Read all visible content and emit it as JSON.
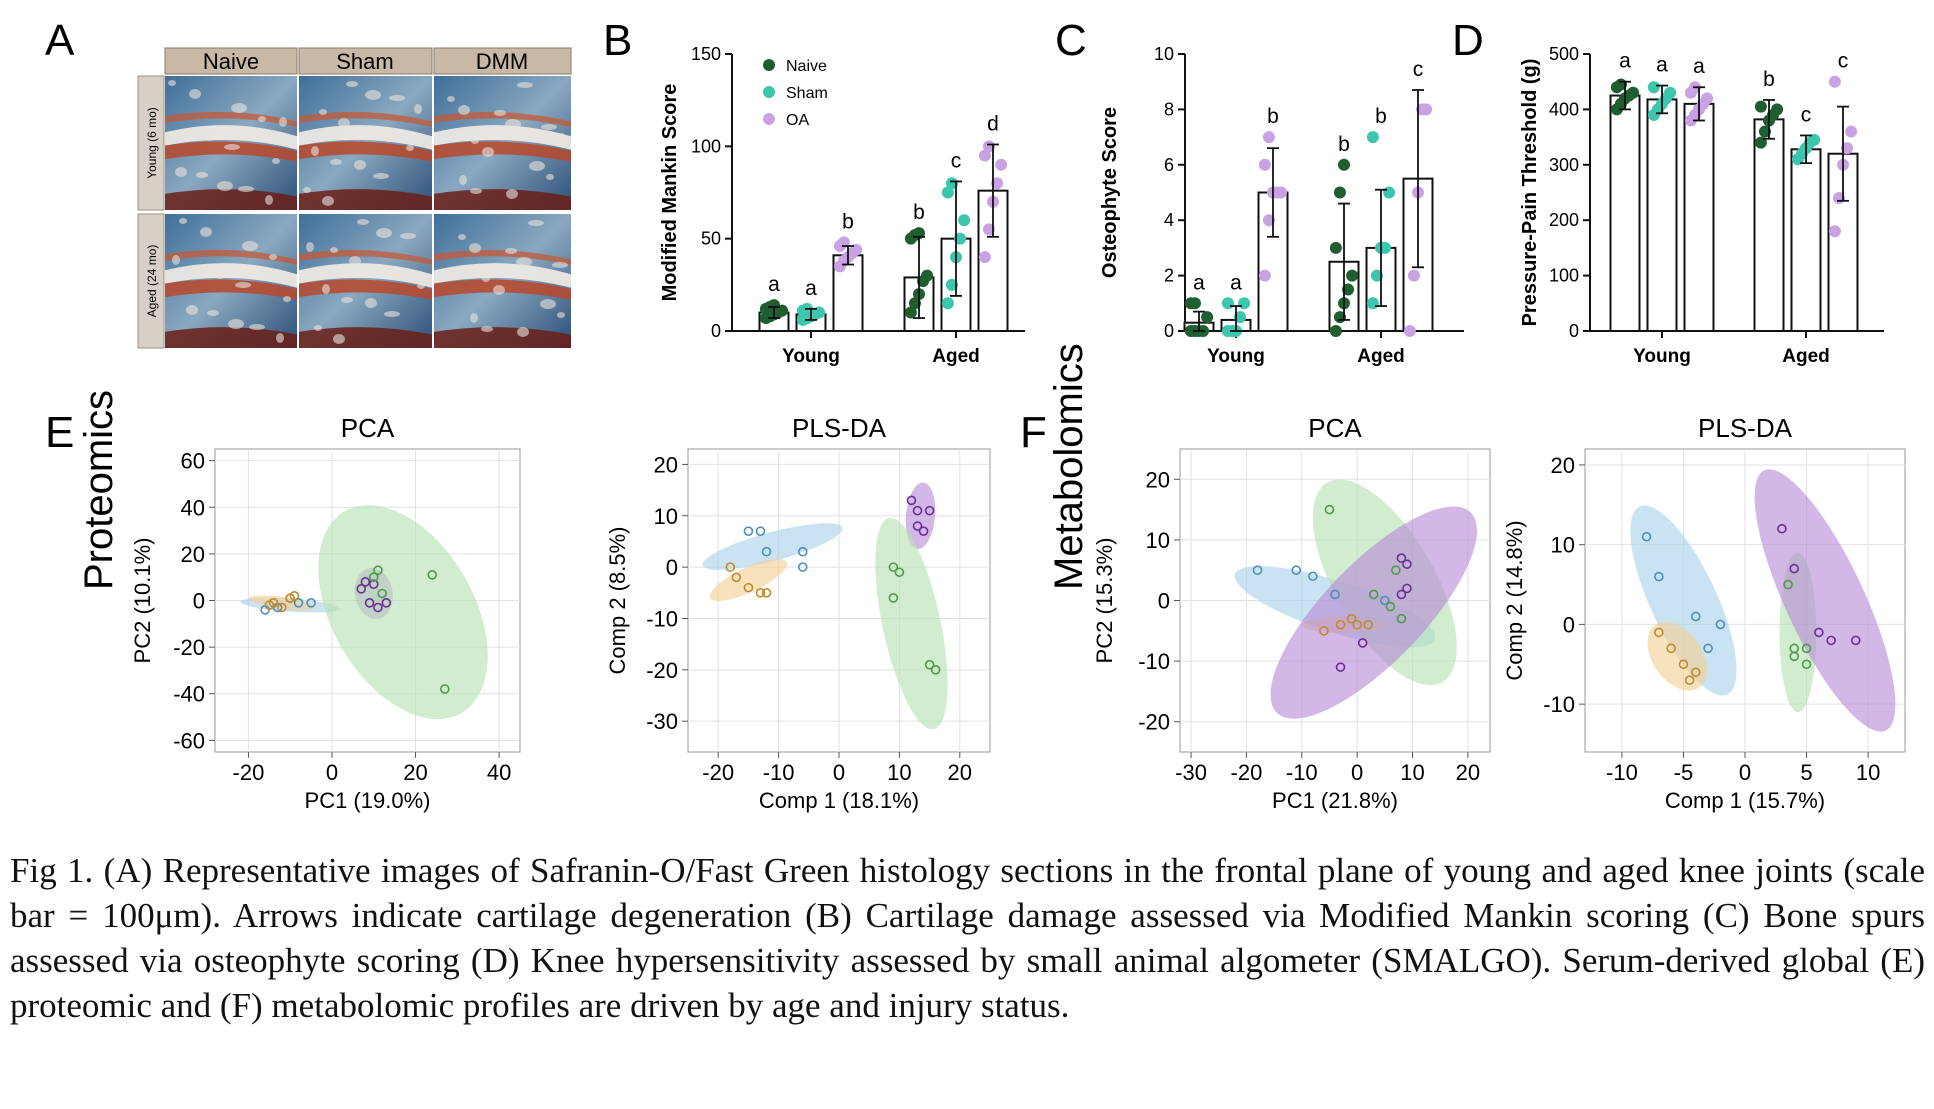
{
  "panel_letters": {
    "A": "A",
    "B": "B",
    "C": "C",
    "D": "D",
    "E": "E",
    "F": "F"
  },
  "histology": {
    "columns": [
      "Naive",
      "Sham",
      "DMM"
    ],
    "rows": [
      "Young (6 mo)",
      "Aged (24 mo)"
    ]
  },
  "omics_row_labels": {
    "proteomics": "Proteomics",
    "metabolomics": "Metabolomics"
  },
  "colors": {
    "naive": "#1e5e30",
    "sham": "#3cc6ad",
    "oa": "#c9a2e3",
    "blue_group": "#a9d2ea",
    "orange_group": "#f4cf95",
    "green_group": "#b5e0b2",
    "purple_group": "#b88ad6"
  },
  "chart_data": [
    {
      "id": "B",
      "type": "bar",
      "ylabel": "Modified Mankin Score",
      "ylim": [
        0,
        150
      ],
      "yticks": [
        0,
        50,
        100,
        150
      ],
      "categories": [
        "Young",
        "Aged"
      ],
      "legend": {
        "placement": "top-left",
        "entries": [
          "Naive",
          "Sham",
          "OA"
        ]
      },
      "series": [
        {
          "name": "Naive",
          "values": [
            10,
            29
          ],
          "err": [
            3,
            22
          ],
          "letters": [
            "a",
            "b"
          ],
          "points": [
            [
              7,
              8,
              9,
              10,
              11,
              12,
              13,
              14
            ],
            [
              10,
              15,
              20,
              27,
              30,
              50,
              52,
              53
            ]
          ]
        },
        {
          "name": "Sham",
          "values": [
            9,
            50
          ],
          "err": [
            3,
            31
          ],
          "letters": [
            "a",
            "c"
          ],
          "points": [
            [
              6,
              7,
              8,
              9,
              10,
              11,
              12
            ],
            [
              15,
              25,
              40,
              50,
              60,
              75,
              80
            ]
          ]
        },
        {
          "name": "OA",
          "values": [
            41,
            76
          ],
          "err": [
            5,
            25
          ],
          "letters": [
            "b",
            "d"
          ],
          "points": [
            [
              35,
              38,
              40,
              42,
              44,
              46,
              48
            ],
            [
              40,
              55,
              70,
              80,
              90,
              95,
              100
            ]
          ]
        }
      ]
    },
    {
      "id": "C",
      "type": "bar",
      "ylabel": "Osteophyte Score",
      "ylim": [
        0,
        10
      ],
      "yticks": [
        0,
        2,
        4,
        6,
        8,
        10
      ],
      "categories": [
        "Young",
        "Aged"
      ],
      "series": [
        {
          "name": "Naive",
          "values": [
            0.3,
            2.5
          ],
          "err": [
            0.4,
            2.1
          ],
          "letters": [
            "a",
            "b"
          ],
          "points": [
            [
              0,
              0,
              0,
              0,
              0.5,
              1,
              1
            ],
            [
              0,
              0.5,
              1,
              1.5,
              2,
              3,
              5,
              6
            ]
          ]
        },
        {
          "name": "Sham",
          "values": [
            0.4,
            3.0
          ],
          "err": [
            0.5,
            2.1
          ],
          "letters": [
            "a",
            "b"
          ],
          "points": [
            [
              0,
              0,
              0,
              0.5,
              1,
              1
            ],
            [
              1,
              2,
              3,
              3,
              5,
              7
            ]
          ]
        },
        {
          "name": "OA",
          "values": [
            5.0,
            5.5
          ],
          "err": [
            1.6,
            3.2
          ],
          "letters": [
            "b",
            "c"
          ],
          "points": [
            [
              2,
              4,
              5,
              5,
              5,
              6,
              7
            ],
            [
              0,
              2,
              5,
              8,
              8
            ]
          ]
        }
      ]
    },
    {
      "id": "D",
      "type": "bar",
      "ylabel": "Pressure-Pain Threshold (g)",
      "ylim": [
        0,
        500
      ],
      "yticks": [
        0,
        100,
        200,
        300,
        400,
        500
      ],
      "categories": [
        "Young",
        "Aged"
      ],
      "series": [
        {
          "name": "Naive",
          "values": [
            425,
            382
          ],
          "err": [
            25,
            35
          ],
          "letters": [
            "a",
            "b"
          ],
          "points": [
            [
              400,
              410,
              420,
              425,
              430,
              440,
              445
            ],
            [
              340,
              360,
              380,
              390,
              400,
              405
            ]
          ]
        },
        {
          "name": "Sham",
          "values": [
            418,
            328
          ],
          "err": [
            25,
            25
          ],
          "letters": [
            "a",
            "c"
          ],
          "points": [
            [
              390,
              400,
              410,
              420,
              430,
              440
            ],
            [
              310,
              320,
              330,
              340,
              345
            ]
          ]
        },
        {
          "name": "OA",
          "values": [
            410,
            320
          ],
          "err": [
            30,
            85
          ],
          "letters": [
            "a",
            "c"
          ],
          "points": [
            [
              380,
              390,
              400,
              410,
              420,
              430,
              440
            ],
            [
              180,
              240,
              300,
              330,
              360,
              450
            ]
          ]
        }
      ]
    },
    {
      "id": "E-PCA",
      "type": "scatter",
      "title": "PCA",
      "xlabel": "PC1 (19.0%)",
      "ylabel": "PC2 (10.1%)",
      "xlim": [
        -28,
        45
      ],
      "ylim": [
        -65,
        65
      ],
      "xticks": [
        -20,
        0,
        20,
        40
      ],
      "yticks": [
        -60,
        -40,
        -20,
        0,
        20,
        40,
        60
      ],
      "groups": [
        {
          "color": "blue",
          "points": [
            [
              -16,
              -4
            ],
            [
              -13,
              -3
            ],
            [
              -8,
              -1
            ],
            [
              -5,
              -1
            ],
            [
              -10,
              1
            ]
          ],
          "ellipse": {
            "cx": -10,
            "cy": -2,
            "rx": 12,
            "ry": 2.8,
            "angle": 4
          }
        },
        {
          "color": "orange",
          "points": [
            [
              -15,
              -2
            ],
            [
              -12,
              -3
            ],
            [
              -10,
              1
            ],
            [
              -9,
              2
            ],
            [
              -14,
              -1
            ]
          ],
          "ellipse": {
            "cx": -12,
            "cy": -1,
            "rx": 8,
            "ry": 2.5,
            "angle": 8
          }
        },
        {
          "color": "purple",
          "points": [
            [
              8,
              8
            ],
            [
              10,
              7
            ],
            [
              11,
              -3
            ],
            [
              9,
              -1
            ],
            [
              13,
              -1
            ],
            [
              7,
              5
            ]
          ],
          "ellipse": {
            "cx": 10,
            "cy": 3,
            "rx": 4.5,
            "ry": 11,
            "angle": -10
          }
        },
        {
          "color": "green",
          "points": [
            [
              10,
              10
            ],
            [
              11,
              13
            ],
            [
              24,
              11
            ],
            [
              27,
              -38
            ],
            [
              12,
              3
            ]
          ],
          "ellipse": {
            "cx": 17,
            "cy": -5,
            "rx": 17,
            "ry": 50,
            "angle": -30
          }
        }
      ]
    },
    {
      "id": "E-PLSDA",
      "type": "scatter",
      "title": "PLS-DA",
      "xlabel": "Comp 1 (18.1%)",
      "ylabel": "Comp 2 (8.5%)",
      "xlim": [
        -25,
        25
      ],
      "ylim": [
        -36,
        23
      ],
      "xticks": [
        -20,
        -10,
        0,
        10,
        20
      ],
      "yticks": [
        -30,
        -20,
        -10,
        0,
        10,
        20
      ],
      "groups": [
        {
          "color": "blue",
          "points": [
            [
              -15,
              7
            ],
            [
              -13,
              7
            ],
            [
              -12,
              3
            ],
            [
              -6,
              3
            ],
            [
              -6,
              0
            ]
          ],
          "ellipse": {
            "cx": -11,
            "cy": 4,
            "rx": 12,
            "ry": 2.8,
            "angle": -15
          }
        },
        {
          "color": "orange",
          "points": [
            [
              -18,
              0
            ],
            [
              -17,
              -2
            ],
            [
              -15,
              -4
            ],
            [
              -13,
              -5
            ],
            [
              -12,
              -5
            ]
          ],
          "ellipse": {
            "cx": -15,
            "cy": -2.5,
            "rx": 7,
            "ry": 2.4,
            "angle": -25
          }
        },
        {
          "color": "purple",
          "points": [
            [
              12,
              13
            ],
            [
              13,
              11
            ],
            [
              15,
              11
            ],
            [
              13,
              8
            ],
            [
              14,
              7
            ]
          ],
          "ellipse": {
            "cx": 13.5,
            "cy": 10,
            "rx": 2.4,
            "ry": 6.5,
            "angle": 5
          }
        },
        {
          "color": "green",
          "points": [
            [
              9,
              0
            ],
            [
              10,
              -1
            ],
            [
              9,
              -6
            ],
            [
              15,
              -19
            ],
            [
              16,
              -20
            ]
          ],
          "ellipse": {
            "cx": 12,
            "cy": -11,
            "rx": 4.8,
            "ry": 21,
            "angle": -12
          }
        }
      ]
    },
    {
      "id": "F-PCA",
      "type": "scatter",
      "title": "PCA",
      "xlabel": "PC1 (21.8%)",
      "ylabel": "PC2 (15.3%)",
      "xlim": [
        -32,
        24
      ],
      "ylim": [
        -25,
        25
      ],
      "xticks": [
        -30,
        -20,
        -10,
        0,
        10,
        20
      ],
      "yticks": [
        -20,
        -10,
        0,
        10,
        20
      ],
      "groups": [
        {
          "color": "blue",
          "points": [
            [
              -18,
              5
            ],
            [
              -11,
              5
            ],
            [
              -4,
              1
            ],
            [
              5,
              0
            ],
            [
              -8,
              4
            ]
          ],
          "ellipse": {
            "cx": -4,
            "cy": -1,
            "rx": 19,
            "ry": 4.2,
            "angle": 18
          }
        },
        {
          "color": "orange",
          "points": [
            [
              -6,
              -5
            ],
            [
              -3,
              -4
            ],
            [
              0,
              -4
            ],
            [
              2,
              -4
            ],
            [
              -1,
              -3
            ]
          ],
          "ellipse": {
            "cx": -2,
            "cy": -4,
            "rx": 8,
            "ry": 1.4,
            "angle": 0
          }
        },
        {
          "color": "green",
          "points": [
            [
              -5,
              15
            ],
            [
              7,
              5
            ],
            [
              8,
              -3
            ],
            [
              6,
              -1
            ],
            [
              3,
              1
            ]
          ],
          "ellipse": {
            "cx": 5,
            "cy": 3,
            "rx": 9,
            "ry": 19,
            "angle": -30
          }
        },
        {
          "color": "purple",
          "points": [
            [
              -3,
              -11
            ],
            [
              1,
              -7
            ],
            [
              8,
              1
            ],
            [
              9,
              2
            ],
            [
              8,
              7
            ],
            [
              9,
              6
            ]
          ],
          "ellipse": {
            "cx": 3,
            "cy": -2,
            "rx": 9,
            "ry": 23,
            "angle": 44
          }
        }
      ]
    },
    {
      "id": "F-PLSDA",
      "type": "scatter",
      "title": "PLS-DA",
      "xlabel": "Comp 1 (15.7%)",
      "ylabel": "Comp 2 (14.8%)",
      "xlim": [
        -13,
        13
      ],
      "ylim": [
        -16,
        22
      ],
      "xticks": [
        -10,
        -5,
        0,
        5,
        10
      ],
      "yticks": [
        -10,
        0,
        10,
        20
      ],
      "groups": [
        {
          "color": "blue",
          "points": [
            [
              -8,
              11
            ],
            [
              -7,
              6
            ],
            [
              -4,
              1
            ],
            [
              -2,
              0
            ],
            [
              -3,
              -3
            ]
          ],
          "ellipse": {
            "cx": -5,
            "cy": 3,
            "rx": 2.7,
            "ry": 13,
            "angle": -25
          }
        },
        {
          "color": "orange",
          "points": [
            [
              -7,
              -1
            ],
            [
              -6,
              -3
            ],
            [
              -5,
              -5
            ],
            [
              -4,
              -6
            ],
            [
              -4.5,
              -7
            ]
          ],
          "ellipse": {
            "cx": -5.5,
            "cy": -4,
            "rx": 2,
            "ry": 4.8,
            "angle": -35
          }
        },
        {
          "color": "green",
          "points": [
            [
              4,
              -3
            ],
            [
              5,
              -3
            ],
            [
              5,
              -5
            ],
            [
              4,
              -4
            ],
            [
              3.5,
              5
            ]
          ],
          "ellipse": {
            "cx": 4.3,
            "cy": -1,
            "rx": 1.5,
            "ry": 10,
            "angle": 0
          }
        },
        {
          "color": "purple",
          "points": [
            [
              3,
              12
            ],
            [
              4,
              7
            ],
            [
              6,
              -1
            ],
            [
              7,
              -2
            ],
            [
              9,
              -2
            ]
          ],
          "ellipse": {
            "cx": 6.5,
            "cy": 3,
            "rx": 3.2,
            "ry": 18,
            "angle": -25
          }
        }
      ]
    }
  ],
  "caption": "Fig 1. (A) Representative images of Safranin-O/Fast Green histology sections in the frontal plane of young and aged knee joints (scale bar = 100μm). Arrows indicate cartilage degeneration (B) Cartilage damage assessed via Modified Mankin scoring  (C) Bone spurs assessed via osteophyte scoring (D) Knee hypersensitivity assessed by small animal algometer (SMALGO). Serum-derived global (E) proteomic and (F) metabolomic profiles are driven by age and injury status."
}
